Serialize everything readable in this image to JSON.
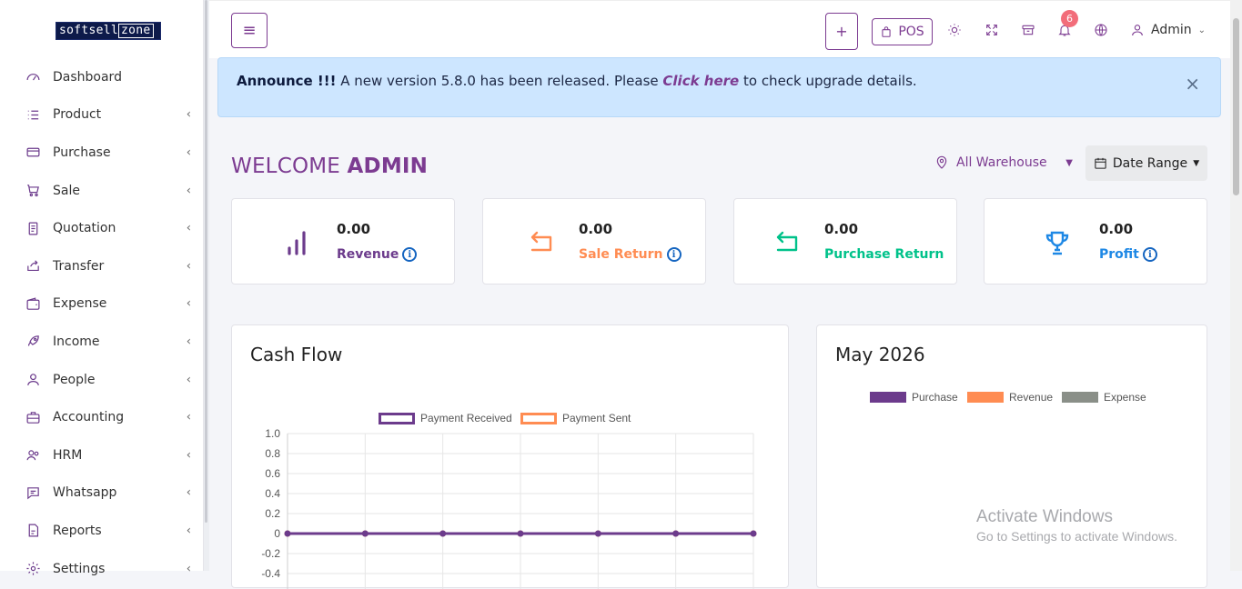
{
  "brand": {
    "logo_text": "softsell",
    "logo_zone": "zone"
  },
  "sidebar": {
    "items": [
      {
        "label": "Dashboard",
        "icon": "gauge-icon",
        "has_children": false
      },
      {
        "label": "Product",
        "icon": "list-icon",
        "has_children": true
      },
      {
        "label": "Purchase",
        "icon": "credit-card-icon",
        "has_children": true
      },
      {
        "label": "Sale",
        "icon": "cart-icon",
        "has_children": true
      },
      {
        "label": "Quotation",
        "icon": "document-icon",
        "has_children": true
      },
      {
        "label": "Transfer",
        "icon": "share-icon",
        "has_children": true
      },
      {
        "label": "Expense",
        "icon": "wallet-icon",
        "has_children": true
      },
      {
        "label": "Income",
        "icon": "rocket-icon",
        "has_children": true
      },
      {
        "label": "People",
        "icon": "user-icon",
        "has_children": true
      },
      {
        "label": "Accounting",
        "icon": "briefcase-icon",
        "has_children": true
      },
      {
        "label": "HRM",
        "icon": "users-icon",
        "has_children": true
      },
      {
        "label": "Whatsapp",
        "icon": "chat-icon",
        "has_children": true
      },
      {
        "label": "Reports",
        "icon": "report-icon",
        "has_children": true
      },
      {
        "label": "Settings",
        "icon": "gear-icon",
        "has_children": true
      }
    ]
  },
  "topbar": {
    "menu_icon": "hamburger-icon",
    "add_label": "+",
    "pos_label": "POS",
    "notification_count": "6",
    "user_label": "Admin"
  },
  "announce": {
    "prefix": "Announce !!!",
    "text_before": " A new version 5.8.0 has been released. Please ",
    "link": "Click here",
    "text_after": " to check upgrade details.",
    "close": "×"
  },
  "welcome": {
    "greeting": "WELCOME ",
    "user": "ADMIN"
  },
  "filters": {
    "warehouse": "All Warehouse",
    "date_range": "Date Range"
  },
  "stats": [
    {
      "amount": "0.00",
      "label": "Revenue",
      "color": "#6c3b8c",
      "icon": "bar-chart-icon"
    },
    {
      "amount": "0.00",
      "label": "Sale Return",
      "color": "#ff8c52",
      "icon": "return-arrow-icon"
    },
    {
      "amount": "0.00",
      "label": "Purchase Return",
      "color": "#00c28a",
      "icon": "return-arrow-icon"
    },
    {
      "amount": "0.00",
      "label": "Profit",
      "color": "#1e88e5",
      "icon": "trophy-icon"
    }
  ],
  "cashflow": {
    "title": "Cash Flow",
    "chart_data": {
      "type": "line",
      "title": "Cash Flow",
      "x": [
        "",
        "",
        "",
        "",
        "",
        "",
        ""
      ],
      "series": [
        {
          "name": "Payment Received",
          "values": [
            0,
            0,
            0,
            0,
            0,
            0,
            0
          ],
          "color": "#6c3b8c"
        },
        {
          "name": "Payment Sent",
          "values": [
            0,
            0,
            0,
            0,
            0,
            0,
            0
          ],
          "color": "#ff8c52"
        }
      ],
      "yticks": [
        "1.0",
        "0.8",
        "0.6",
        "0.4",
        "0.2",
        "0",
        "-0.2",
        "-0.4"
      ],
      "ylim": [
        -0.4,
        1.0
      ],
      "grid": true,
      "legend": "top"
    }
  },
  "monthly": {
    "title": "May 2026",
    "chart_data": {
      "type": "bar",
      "title": "May 2026",
      "legend": "top",
      "series": [
        {
          "name": "Purchase",
          "color": "#6c3b8c"
        },
        {
          "name": "Revenue",
          "color": "#ff8c52"
        },
        {
          "name": "Expense",
          "color": "#8a8f88"
        }
      ]
    }
  },
  "watermark": {
    "line1": "Activate Windows",
    "line2": "Go to Settings to activate Windows."
  }
}
